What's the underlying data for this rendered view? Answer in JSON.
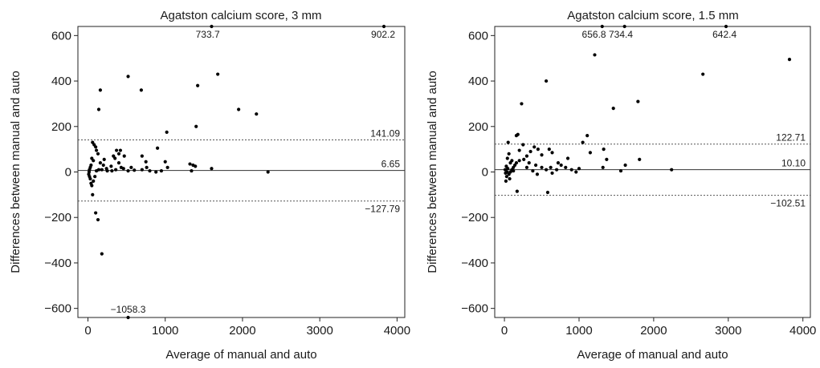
{
  "chart_data": [
    {
      "type": "scatter",
      "title": "Agatston calcium score, 3 mm",
      "xlabel": "Average of manual and auto",
      "ylabel": "Differences between manual and auto",
      "xlim": [
        -130,
        4100
      ],
      "ylim": [
        -640,
        640
      ],
      "xticks": [
        0,
        1000,
        2000,
        3000,
        4000
      ],
      "yticks": [
        -600,
        -400,
        -200,
        0,
        200,
        400,
        600
      ],
      "grid": false,
      "reference_lines": [
        {
          "kind": "upper-loa",
          "value": 141.09,
          "label": "141.09",
          "style": "dashed"
        },
        {
          "kind": "mean",
          "value": 6.65,
          "label": "6.65",
          "style": "solid"
        },
        {
          "kind": "lower-loa",
          "value": -127.79,
          "label": "−127.79",
          "style": "dashed"
        }
      ],
      "annotations": [
        {
          "text": "733.7",
          "x": 1550,
          "y": 640
        },
        {
          "text": "902.2",
          "x": 3820,
          "y": 640
        },
        {
          "text": "−1058.3",
          "x": 520,
          "y": -640
        }
      ],
      "points": [
        [
          1600,
          640
        ],
        [
          3830,
          640
        ],
        [
          520,
          -640
        ],
        [
          520,
          420
        ],
        [
          1680,
          430
        ],
        [
          160,
          360
        ],
        [
          690,
          360
        ],
        [
          1420,
          380
        ],
        [
          140,
          275
        ],
        [
          1950,
          275
        ],
        [
          2180,
          255
        ],
        [
          1400,
          200
        ],
        [
          1020,
          175
        ],
        [
          900,
          105
        ],
        [
          60,
          130
        ],
        [
          80,
          120
        ],
        [
          100,
          110
        ],
        [
          110,
          95
        ],
        [
          370,
          95
        ],
        [
          420,
          95
        ],
        [
          400,
          80
        ],
        [
          330,
          70
        ],
        [
          470,
          70
        ],
        [
          130,
          80
        ],
        [
          700,
          70
        ],
        [
          750,
          45
        ],
        [
          1000,
          45
        ],
        [
          1030,
          20
        ],
        [
          1320,
          35
        ],
        [
          1360,
          30
        ],
        [
          1390,
          25
        ],
        [
          1340,
          5
        ],
        [
          2330,
          0
        ],
        [
          1600,
          15
        ],
        [
          760,
          20
        ],
        [
          400,
          40
        ],
        [
          350,
          60
        ],
        [
          300,
          25
        ],
        [
          200,
          30
        ],
        [
          240,
          15
        ],
        [
          40,
          30
        ],
        [
          30,
          20
        ],
        [
          20,
          10
        ],
        [
          15,
          0
        ],
        [
          10,
          -10
        ],
        [
          20,
          -20
        ],
        [
          30,
          -30
        ],
        [
          40,
          -50
        ],
        [
          50,
          -60
        ],
        [
          60,
          -100
        ],
        [
          70,
          -40
        ],
        [
          90,
          -20
        ],
        [
          110,
          5
        ],
        [
          140,
          10
        ],
        [
          180,
          10
        ],
        [
          250,
          5
        ],
        [
          310,
          5
        ],
        [
          360,
          10
        ],
        [
          460,
          15
        ],
        [
          520,
          5
        ],
        [
          600,
          8
        ],
        [
          700,
          10
        ],
        [
          800,
          5
        ],
        [
          880,
          0
        ],
        [
          950,
          5
        ],
        [
          100,
          -180
        ],
        [
          130,
          -210
        ],
        [
          180,
          -360
        ],
        [
          50,
          60
        ],
        [
          70,
          50
        ],
        [
          160,
          40
        ],
        [
          210,
          55
        ],
        [
          430,
          20
        ],
        [
          560,
          20
        ]
      ]
    },
    {
      "type": "scatter",
      "title": "Agatston calcium score, 1.5 mm",
      "xlabel": "Average of manual and auto",
      "ylabel": "Differences between manual and auto",
      "xlim": [
        -130,
        4100
      ],
      "ylim": [
        -640,
        640
      ],
      "xticks": [
        0,
        1000,
        2000,
        3000,
        4000
      ],
      "yticks": [
        -600,
        -400,
        -200,
        0,
        200,
        400,
        600
      ],
      "grid": false,
      "reference_lines": [
        {
          "kind": "upper-loa",
          "value": 122.71,
          "label": "122.71",
          "style": "dashed"
        },
        {
          "kind": "mean",
          "value": 10.1,
          "label": "10.10",
          "style": "solid"
        },
        {
          "kind": "lower-loa",
          "value": -102.51,
          "label": "−102.51",
          "style": "dashed"
        }
      ],
      "annotations": [
        {
          "text": "656.8",
          "x": 1200,
          "y": 640
        },
        {
          "text": "734.4",
          "x": 1560,
          "y": 640
        },
        {
          "text": "642.4",
          "x": 2950,
          "y": 640
        }
      ],
      "points": [
        [
          1310,
          640
        ],
        [
          1610,
          640
        ],
        [
          2970,
          640
        ],
        [
          1210,
          515
        ],
        [
          3820,
          495
        ],
        [
          560,
          400
        ],
        [
          2660,
          430
        ],
        [
          1460,
          280
        ],
        [
          1790,
          310
        ],
        [
          230,
          300
        ],
        [
          160,
          160
        ],
        [
          180,
          165
        ],
        [
          1110,
          160
        ],
        [
          1050,
          130
        ],
        [
          600,
          100
        ],
        [
          640,
          85
        ],
        [
          400,
          110
        ],
        [
          450,
          100
        ],
        [
          350,
          90
        ],
        [
          300,
          70
        ],
        [
          500,
          75
        ],
        [
          1150,
          85
        ],
        [
          1330,
          100
        ],
        [
          1370,
          55
        ],
        [
          1810,
          55
        ],
        [
          1620,
          30
        ],
        [
          1560,
          5
        ],
        [
          2240,
          10
        ],
        [
          1320,
          20
        ],
        [
          580,
          -90
        ],
        [
          170,
          -85
        ],
        [
          20,
          -40
        ],
        [
          30,
          -20
        ],
        [
          60,
          -10
        ],
        [
          80,
          0
        ],
        [
          100,
          10
        ],
        [
          120,
          20
        ],
        [
          140,
          30
        ],
        [
          160,
          40
        ],
        [
          200,
          50
        ],
        [
          260,
          55
        ],
        [
          330,
          40
        ],
        [
          420,
          30
        ],
        [
          500,
          20
        ],
        [
          560,
          10
        ],
        [
          620,
          20
        ],
        [
          700,
          10
        ],
        [
          760,
          30
        ],
        [
          820,
          20
        ],
        [
          900,
          10
        ],
        [
          960,
          0
        ],
        [
          1000,
          15
        ],
        [
          40,
          60
        ],
        [
          60,
          80
        ],
        [
          80,
          40
        ],
        [
          100,
          50
        ],
        [
          120,
          5
        ],
        [
          50,
          130
        ],
        [
          200,
          95
        ],
        [
          250,
          120
        ],
        [
          300,
          20
        ],
        [
          380,
          5
        ],
        [
          440,
          -10
        ],
        [
          640,
          -5
        ],
        [
          720,
          40
        ],
        [
          850,
          60
        ],
        [
          10,
          10
        ],
        [
          15,
          -5
        ],
        [
          25,
          25
        ],
        [
          35,
          0
        ],
        [
          45,
          15
        ],
        [
          70,
          -30
        ]
      ]
    }
  ]
}
